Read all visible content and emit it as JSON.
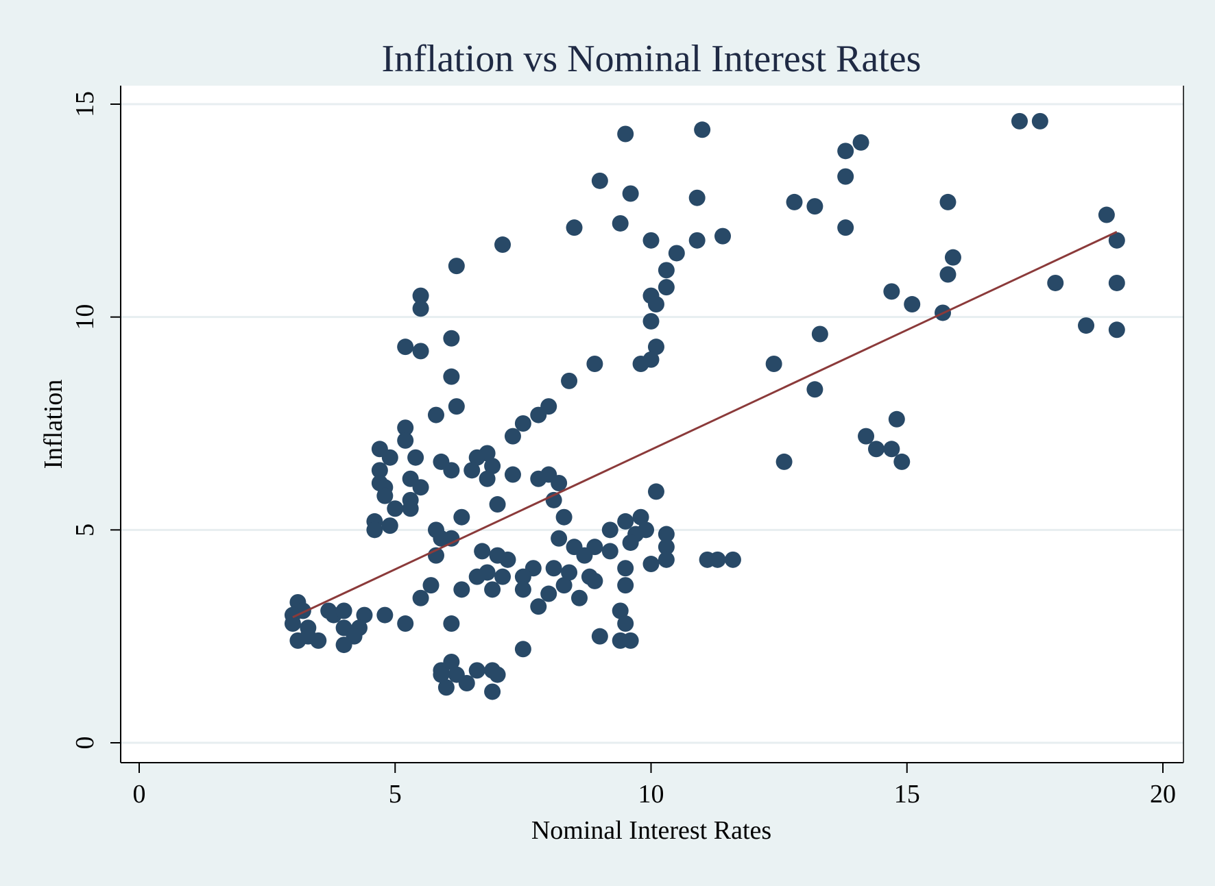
{
  "chart_data": {
    "type": "scatter",
    "title": "Inflation vs Nominal Interest Rates",
    "xlabel": "Nominal Interest Rates",
    "ylabel": "Inflation",
    "xlim": [
      0,
      20
    ],
    "ylim": [
      0,
      15
    ],
    "xticks": [
      "0",
      "5",
      "10",
      "15",
      "20"
    ],
    "yticks": [
      "0",
      "5",
      "10",
      "15"
    ],
    "grid": "horizontal",
    "legend": "none",
    "colors": {
      "points": "#284967",
      "fit_line": "#8b3a3a",
      "text": "#1f2a44",
      "background": "#eaf2f3",
      "plot_background": "#ffffff",
      "grid": "#e7eef0"
    },
    "fit_line": {
      "x": [
        3.0,
        19.1
      ],
      "y": [
        2.95,
        12.0
      ]
    },
    "points": [
      [
        17.2,
        14.6
      ],
      [
        17.6,
        14.6
      ],
      [
        11.0,
        14.4
      ],
      [
        9.5,
        14.3
      ],
      [
        14.1,
        14.1
      ],
      [
        13.8,
        13.9
      ],
      [
        13.8,
        13.3
      ],
      [
        9.0,
        13.2
      ],
      [
        9.6,
        12.9
      ],
      [
        10.9,
        12.8
      ],
      [
        12.8,
        12.7
      ],
      [
        13.2,
        12.6
      ],
      [
        15.8,
        12.7
      ],
      [
        18.9,
        12.4
      ],
      [
        9.4,
        12.2
      ],
      [
        8.5,
        12.1
      ],
      [
        13.8,
        12.1
      ],
      [
        10.0,
        11.8
      ],
      [
        10.9,
        11.8
      ],
      [
        11.4,
        11.9
      ],
      [
        7.1,
        11.7
      ],
      [
        19.1,
        11.8
      ],
      [
        10.5,
        11.5
      ],
      [
        15.9,
        11.4
      ],
      [
        6.2,
        11.2
      ],
      [
        10.3,
        11.1
      ],
      [
        15.8,
        11.0
      ],
      [
        17.9,
        10.8
      ],
      [
        19.1,
        10.8
      ],
      [
        10.3,
        10.7
      ],
      [
        14.7,
        10.6
      ],
      [
        5.5,
        10.5
      ],
      [
        10.0,
        10.5
      ],
      [
        10.1,
        10.3
      ],
      [
        15.1,
        10.3
      ],
      [
        5.5,
        10.2
      ],
      [
        15.7,
        10.1
      ],
      [
        10.0,
        9.9
      ],
      [
        18.5,
        9.8
      ],
      [
        19.1,
        9.7
      ],
      [
        13.3,
        9.6
      ],
      [
        6.1,
        9.5
      ],
      [
        5.2,
        9.3
      ],
      [
        10.1,
        9.3
      ],
      [
        5.5,
        9.2
      ],
      [
        10.0,
        9.0
      ],
      [
        8.9,
        8.9
      ],
      [
        9.8,
        8.9
      ],
      [
        12.4,
        8.9
      ],
      [
        6.1,
        8.6
      ],
      [
        8.4,
        8.5
      ],
      [
        13.2,
        8.3
      ],
      [
        6.2,
        7.9
      ],
      [
        8.0,
        7.9
      ],
      [
        7.8,
        7.7
      ],
      [
        5.8,
        7.7
      ],
      [
        7.5,
        7.5
      ],
      [
        14.8,
        7.6
      ],
      [
        5.2,
        7.4
      ],
      [
        7.3,
        7.2
      ],
      [
        5.2,
        7.1
      ],
      [
        14.2,
        7.2
      ],
      [
        4.7,
        6.9
      ],
      [
        14.4,
        6.9
      ],
      [
        14.7,
        6.9
      ],
      [
        4.9,
        6.7
      ],
      [
        5.4,
        6.7
      ],
      [
        6.6,
        6.7
      ],
      [
        6.8,
        6.8
      ],
      [
        5.9,
        6.6
      ],
      [
        14.9,
        6.6
      ],
      [
        12.6,
        6.6
      ],
      [
        6.9,
        6.5
      ],
      [
        4.7,
        6.4
      ],
      [
        6.1,
        6.4
      ],
      [
        6.5,
        6.4
      ],
      [
        8.0,
        6.3
      ],
      [
        6.8,
        6.2
      ],
      [
        7.3,
        6.3
      ],
      [
        5.3,
        6.2
      ],
      [
        7.8,
        6.2
      ],
      [
        8.2,
        6.1
      ],
      [
        4.7,
        6.1
      ],
      [
        4.8,
        6.0
      ],
      [
        5.5,
        6.0
      ],
      [
        10.1,
        5.9
      ],
      [
        4.8,
        5.8
      ],
      [
        5.3,
        5.7
      ],
      [
        8.1,
        5.7
      ],
      [
        7.0,
        5.6
      ],
      [
        5.3,
        5.5
      ],
      [
        5.0,
        5.5
      ],
      [
        6.3,
        5.3
      ],
      [
        8.3,
        5.3
      ],
      [
        9.8,
        5.3
      ],
      [
        4.6,
        5.2
      ],
      [
        9.5,
        5.2
      ],
      [
        4.6,
        5.0
      ],
      [
        4.9,
        5.1
      ],
      [
        5.8,
        5.0
      ],
      [
        9.2,
        5.0
      ],
      [
        9.9,
        5.0
      ],
      [
        10.3,
        4.9
      ],
      [
        9.7,
        4.9
      ],
      [
        5.9,
        4.8
      ],
      [
        6.1,
        4.8
      ],
      [
        8.2,
        4.8
      ],
      [
        8.5,
        4.6
      ],
      [
        8.9,
        4.6
      ],
      [
        9.6,
        4.7
      ],
      [
        9.2,
        4.5
      ],
      [
        6.7,
        4.5
      ],
      [
        10.3,
        4.6
      ],
      [
        8.7,
        4.4
      ],
      [
        5.8,
        4.4
      ],
      [
        7.2,
        4.3
      ],
      [
        7.0,
        4.4
      ],
      [
        11.1,
        4.3
      ],
      [
        11.3,
        4.3
      ],
      [
        11.6,
        4.3
      ],
      [
        10.0,
        4.2
      ],
      [
        10.3,
        4.3
      ],
      [
        9.5,
        4.1
      ],
      [
        6.8,
        4.0
      ],
      [
        8.1,
        4.1
      ],
      [
        8.4,
        4.0
      ],
      [
        7.7,
        4.1
      ],
      [
        7.1,
        3.9
      ],
      [
        7.5,
        3.9
      ],
      [
        8.8,
        3.9
      ],
      [
        6.6,
        3.9
      ],
      [
        9.5,
        3.7
      ],
      [
        5.7,
        3.7
      ],
      [
        8.0,
        3.5
      ],
      [
        8.3,
        3.7
      ],
      [
        8.6,
        3.4
      ],
      [
        6.9,
        3.6
      ],
      [
        7.5,
        3.6
      ],
      [
        7.8,
        3.2
      ],
      [
        6.3,
        3.6
      ],
      [
        9.4,
        3.1
      ],
      [
        5.5,
        3.4
      ],
      [
        8.9,
        3.8
      ],
      [
        3.1,
        3.3
      ],
      [
        3.2,
        3.1
      ],
      [
        3.0,
        3.0
      ],
      [
        3.7,
        3.1
      ],
      [
        3.8,
        3.0
      ],
      [
        4.0,
        3.1
      ],
      [
        4.4,
        3.0
      ],
      [
        4.8,
        3.0
      ],
      [
        3.0,
        2.8
      ],
      [
        3.3,
        2.7
      ],
      [
        4.0,
        2.7
      ],
      [
        4.3,
        2.7
      ],
      [
        6.1,
        2.8
      ],
      [
        5.2,
        2.8
      ],
      [
        9.5,
        2.8
      ],
      [
        3.1,
        2.4
      ],
      [
        3.3,
        2.5
      ],
      [
        4.2,
        2.5
      ],
      [
        3.5,
        2.4
      ],
      [
        4.0,
        2.3
      ],
      [
        9.0,
        2.5
      ],
      [
        9.4,
        2.4
      ],
      [
        9.6,
        2.4
      ],
      [
        7.5,
        2.2
      ],
      [
        6.1,
        1.9
      ],
      [
        5.9,
        1.7
      ],
      [
        6.6,
        1.7
      ],
      [
        6.9,
        1.7
      ],
      [
        5.9,
        1.6
      ],
      [
        6.2,
        1.6
      ],
      [
        7.0,
        1.6
      ],
      [
        6.0,
        1.3
      ],
      [
        6.4,
        1.4
      ],
      [
        6.9,
        1.2
      ]
    ]
  }
}
